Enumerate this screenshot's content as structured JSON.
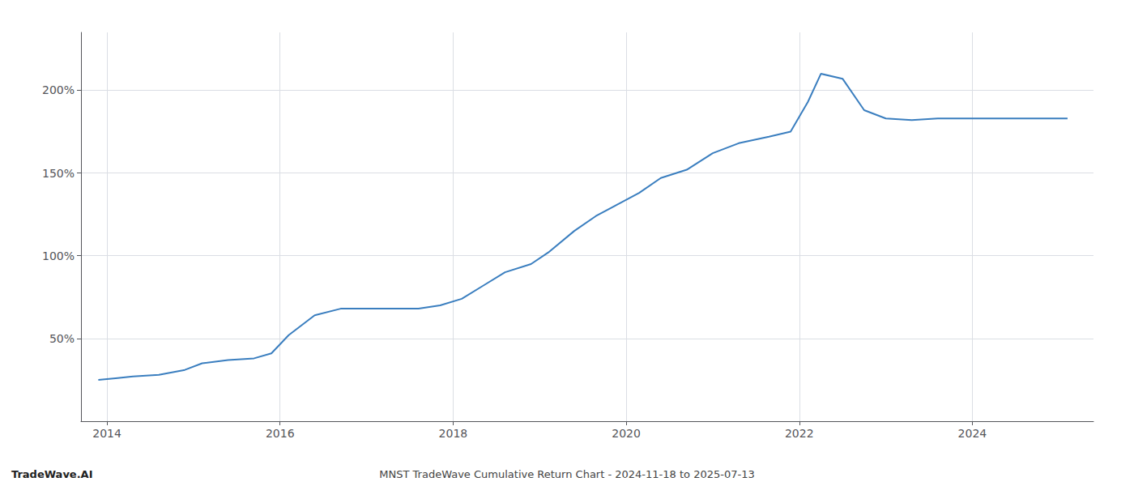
{
  "chart_data": {
    "type": "line",
    "x": [
      2013.9,
      2014.1,
      2014.3,
      2014.6,
      2014.9,
      2015.1,
      2015.4,
      2015.7,
      2015.9,
      2016.1,
      2016.4,
      2016.7,
      2016.9,
      2017.1,
      2017.3,
      2017.6,
      2017.85,
      2018.1,
      2018.35,
      2018.6,
      2018.9,
      2019.1,
      2019.4,
      2019.65,
      2019.9,
      2020.15,
      2020.4,
      2020.7,
      2021.0,
      2021.3,
      2021.65,
      2021.9,
      2022.1,
      2022.25,
      2022.5,
      2022.75,
      2023.0,
      2023.3,
      2023.6,
      2023.9,
      2024.2,
      2024.5,
      2024.8,
      2025.1
    ],
    "values": [
      25,
      26,
      27,
      28,
      31,
      35,
      37,
      38,
      41,
      52,
      64,
      68,
      68,
      68,
      68,
      68,
      70,
      74,
      82,
      90,
      95,
      102,
      115,
      124,
      131,
      138,
      147,
      152,
      162,
      168,
      172,
      175,
      193,
      210,
      207,
      188,
      183,
      182,
      183,
      183,
      183,
      183,
      183,
      183
    ],
    "color": "#3a7ebf",
    "xlim": [
      2013.7,
      2025.4
    ],
    "ylim": [
      0,
      235
    ],
    "xticks": [
      2014,
      2016,
      2018,
      2020,
      2022,
      2024
    ],
    "yticks": [
      {
        "value": 50,
        "label": "50%"
      },
      {
        "value": 100,
        "label": "100%"
      },
      {
        "value": 150,
        "label": "150%"
      },
      {
        "value": 200,
        "label": "200%"
      }
    ],
    "grid": true,
    "annotations": [
      "TradeWave.AI",
      "MNST TradeWave Cumulative Return Chart - 2024-11-18 to 2025-07-13"
    ]
  }
}
